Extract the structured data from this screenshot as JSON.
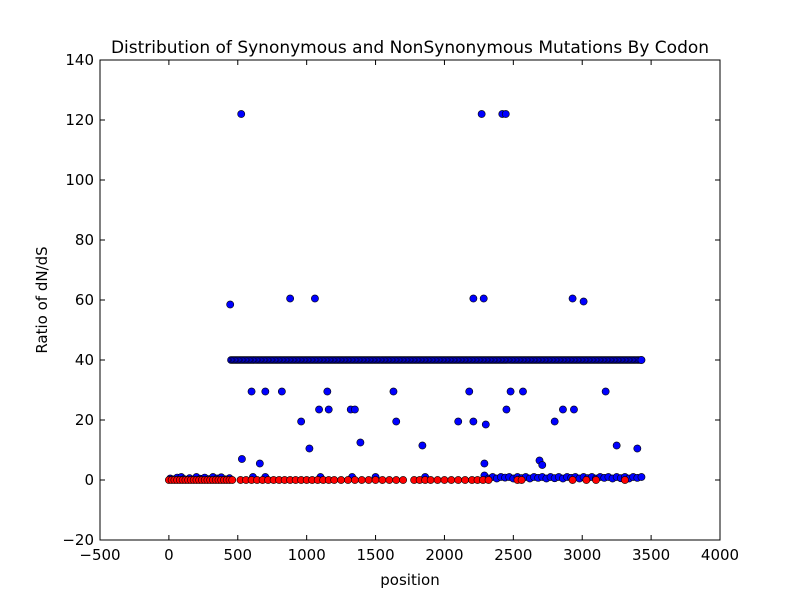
{
  "chart_data": {
    "type": "scatter",
    "title": "Distribution of Synonymous and NonSynonymous Mutations By Codon",
    "xlabel": "position",
    "ylabel": "Ratio of dN/dS",
    "xlim": [
      -500,
      4000
    ],
    "ylim": [
      -20,
      140
    ],
    "xticks": [
      -500,
      0,
      500,
      1000,
      1500,
      2000,
      2500,
      3000,
      3500,
      4000
    ],
    "yticks": [
      -20,
      0,
      20,
      40,
      60,
      80,
      100,
      120,
      140
    ],
    "grid": false,
    "legend": false,
    "colors": {
      "blue": "#0000ff",
      "red": "#ff0000",
      "edge": "#000000"
    },
    "series": [
      {
        "color": "#0000ff",
        "points": [
          [
            10,
            0.5
          ],
          [
            30,
            0.2
          ],
          [
            60,
            0.8
          ],
          [
            90,
            1
          ],
          [
            110,
            0.3
          ],
          [
            150,
            0.6
          ],
          [
            180,
            0.2
          ],
          [
            200,
            1
          ],
          [
            230,
            0.4
          ],
          [
            260,
            0.8
          ],
          [
            290,
            0.3
          ],
          [
            320,
            1
          ],
          [
            350,
            0.5
          ],
          [
            380,
            0.9
          ],
          [
            410,
            0.2
          ],
          [
            440,
            0.6
          ],
          [
            445,
            58.5
          ],
          [
            525,
            122
          ],
          [
            530,
            7
          ],
          [
            600,
            29.5
          ],
          [
            610,
            1
          ],
          [
            660,
            5.5
          ],
          [
            700,
            29.5
          ],
          [
            700,
            1
          ],
          [
            820,
            29.5
          ],
          [
            880,
            60.5
          ],
          [
            960,
            19.5
          ],
          [
            1020,
            10.5
          ],
          [
            1060,
            60.5
          ],
          [
            1090,
            23.5
          ],
          [
            1100,
            1
          ],
          [
            1150,
            29.5
          ],
          [
            1160,
            23.5
          ],
          [
            1320,
            23.5
          ],
          [
            1330,
            1
          ],
          [
            1350,
            23.5
          ],
          [
            1390,
            12.5
          ],
          [
            1500,
            1
          ],
          [
            1630,
            29.5
          ],
          [
            1650,
            19.5
          ],
          [
            1840,
            11.5
          ],
          [
            1860,
            1
          ],
          [
            2100,
            19.5
          ],
          [
            2180,
            29.5
          ],
          [
            2210,
            19.5
          ],
          [
            2210,
            60.5
          ],
          [
            2270,
            122
          ],
          [
            2285,
            60.5
          ],
          [
            2290,
            5.5
          ],
          [
            2300,
            18.5
          ],
          [
            2420,
            122
          ],
          [
            2445,
            122
          ],
          [
            2450,
            23.5
          ],
          [
            2480,
            29.5
          ],
          [
            2570,
            29.5
          ],
          [
            2690,
            6.5
          ],
          [
            2710,
            5
          ],
          [
            2800,
            19.5
          ],
          [
            2860,
            23.5
          ],
          [
            2930,
            60.5
          ],
          [
            2940,
            23.5
          ],
          [
            3010,
            59.5
          ],
          [
            3170,
            29.5
          ],
          [
            3250,
            11.5
          ],
          [
            3400,
            10.5
          ],
          [
            3430,
            40
          ],
          [
            2290,
            1.5
          ],
          [
            2320,
            0.5
          ],
          [
            2350,
            1
          ],
          [
            2380,
            0.5
          ],
          [
            2410,
            1
          ],
          [
            2440,
            0.8
          ],
          [
            2470,
            1
          ],
          [
            2500,
            0.5
          ],
          [
            2530,
            1
          ],
          [
            2560,
            0.6
          ],
          [
            2590,
            1
          ],
          [
            2620,
            0.5
          ],
          [
            2650,
            1
          ],
          [
            2680,
            0.7
          ],
          [
            2710,
            1
          ],
          [
            2740,
            0.5
          ],
          [
            2770,
            1
          ],
          [
            2800,
            0.6
          ],
          [
            2830,
            1
          ],
          [
            2860,
            0.5
          ],
          [
            2890,
            1
          ],
          [
            2920,
            0.7
          ],
          [
            2950,
            1
          ],
          [
            2980,
            0.5
          ],
          [
            3010,
            1
          ],
          [
            3040,
            0.6
          ],
          [
            3070,
            1
          ],
          [
            3100,
            0.5
          ],
          [
            3130,
            1
          ],
          [
            3160,
            0.7
          ],
          [
            3190,
            1
          ],
          [
            3220,
            0.5
          ],
          [
            3250,
            1
          ],
          [
            3280,
            0.6
          ],
          [
            3310,
            1
          ],
          [
            3340,
            0.5
          ],
          [
            3370,
            1
          ],
          [
            3400,
            0.7
          ],
          [
            3430,
            1
          ]
        ]
      },
      {
        "color": "#ff0000",
        "points": [
          [
            0,
            0
          ],
          [
            20,
            0
          ],
          [
            40,
            0
          ],
          [
            60,
            0
          ],
          [
            80,
            0
          ],
          [
            100,
            0
          ],
          [
            120,
            0
          ],
          [
            140,
            0
          ],
          [
            160,
            0
          ],
          [
            180,
            0
          ],
          [
            200,
            0
          ],
          [
            220,
            0
          ],
          [
            240,
            0
          ],
          [
            260,
            0
          ],
          [
            280,
            0
          ],
          [
            300,
            0
          ],
          [
            320,
            0
          ],
          [
            340,
            0
          ],
          [
            360,
            0
          ],
          [
            380,
            0
          ],
          [
            400,
            0
          ],
          [
            420,
            0
          ],
          [
            440,
            0
          ],
          [
            460,
            0
          ],
          [
            520,
            0
          ],
          [
            560,
            0
          ],
          [
            600,
            0
          ],
          [
            640,
            0
          ],
          [
            680,
            0
          ],
          [
            720,
            0
          ],
          [
            760,
            0
          ],
          [
            800,
            0
          ],
          [
            840,
            0
          ],
          [
            880,
            0
          ],
          [
            920,
            0
          ],
          [
            960,
            0
          ],
          [
            1000,
            0
          ],
          [
            1040,
            0
          ],
          [
            1080,
            0
          ],
          [
            1120,
            0
          ],
          [
            1160,
            0
          ],
          [
            1200,
            0
          ],
          [
            1250,
            0
          ],
          [
            1300,
            0
          ],
          [
            1350,
            0
          ],
          [
            1400,
            0
          ],
          [
            1450,
            0
          ],
          [
            1500,
            0
          ],
          [
            1550,
            0
          ],
          [
            1600,
            0
          ],
          [
            1650,
            0
          ],
          [
            1700,
            0
          ],
          [
            1780,
            0
          ],
          [
            1820,
            0
          ],
          [
            1860,
            0
          ],
          [
            1900,
            0
          ],
          [
            1950,
            0
          ],
          [
            2000,
            0
          ],
          [
            2050,
            0
          ],
          [
            2100,
            0
          ],
          [
            2150,
            0
          ],
          [
            2200,
            0
          ],
          [
            2240,
            0
          ],
          [
            2280,
            0
          ],
          [
            2320,
            0
          ],
          [
            2530,
            0
          ],
          [
            2560,
            0
          ],
          [
            2930,
            0
          ],
          [
            3030,
            0
          ],
          [
            3100,
            0
          ],
          [
            3310,
            0
          ]
        ]
      }
    ],
    "band": {
      "color": "#0000ff",
      "y": 40,
      "x_start": 450,
      "x_end": 3430,
      "step": 10
    }
  }
}
